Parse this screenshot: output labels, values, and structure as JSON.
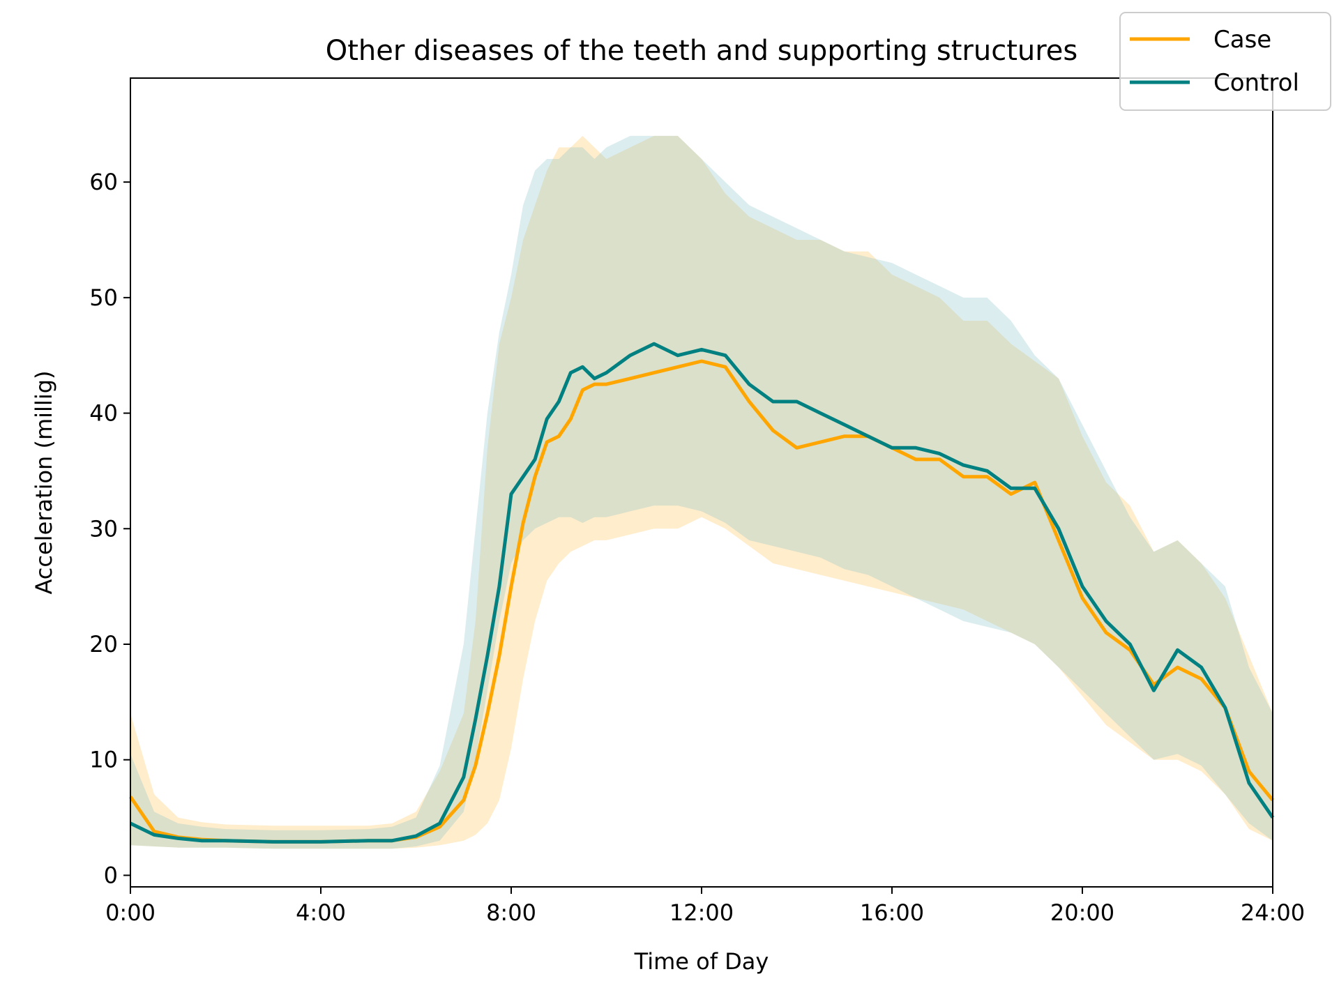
{
  "chart_data": {
    "type": "line",
    "title": "Other diseases of the teeth and supporting structures",
    "xlabel": "Time of Day",
    "ylabel": "Acceleration (millig)",
    "xlim": [
      0,
      24
    ],
    "ylim": [
      -1,
      69
    ],
    "x_ticks": [
      0,
      4,
      8,
      12,
      16,
      20,
      24
    ],
    "x_tick_labels": [
      "0:00",
      "4:00",
      "8:00",
      "12:00",
      "16:00",
      "20:00",
      "24:00"
    ],
    "y_ticks": [
      0,
      10,
      20,
      30,
      40,
      50,
      60
    ],
    "y_tick_labels": [
      "0",
      "10",
      "20",
      "30",
      "40",
      "50",
      "60"
    ],
    "grid": false,
    "legend_position": "top-right",
    "legend": [
      "Case",
      "Control"
    ],
    "series": [
      {
        "name": "Case",
        "color": "#FFA500",
        "band_color": "#FFA500",
        "x": [
          0,
          0.5,
          1,
          1.5,
          2,
          3,
          4,
          5,
          5.5,
          6,
          6.5,
          7,
          7.25,
          7.5,
          7.75,
          8,
          8.25,
          8.5,
          8.75,
          9,
          9.25,
          9.5,
          9.75,
          10,
          10.5,
          11,
          11.5,
          12,
          12.5,
          13,
          13.5,
          14,
          14.5,
          15,
          15.5,
          16,
          16.5,
          17,
          17.5,
          18,
          18.5,
          19,
          19.5,
          20,
          20.5,
          21,
          21.5,
          22,
          22.5,
          23,
          23.5,
          24
        ],
        "mean": [
          6.8,
          3.8,
          3.3,
          3.1,
          3.0,
          2.9,
          2.9,
          3.0,
          3.0,
          3.3,
          4.2,
          6.5,
          9.5,
          14.0,
          19.0,
          25.0,
          30.5,
          34.5,
          37.5,
          38.0,
          39.5,
          42.0,
          42.5,
          42.5,
          43.0,
          43.5,
          44.0,
          44.5,
          44.0,
          41.0,
          38.5,
          37.0,
          37.5,
          38.0,
          38.0,
          37.0,
          36.0,
          36.0,
          34.5,
          34.5,
          33.0,
          34.0,
          29.0,
          24.0,
          21.0,
          19.5,
          16.5,
          18.0,
          17.0,
          14.5,
          9.0,
          6.5
        ],
        "upper": [
          14.0,
          7.0,
          5.0,
          4.6,
          4.4,
          4.3,
          4.3,
          4.3,
          4.5,
          5.5,
          9.0,
          14.0,
          22.0,
          37.0,
          46.0,
          50.0,
          55.0,
          58.0,
          61.0,
          63.0,
          63.0,
          64.0,
          63.0,
          62.0,
          63.0,
          64.0,
          64.0,
          62.0,
          59.0,
          57.0,
          56.0,
          55.0,
          55.0,
          54.0,
          54.0,
          52.0,
          51.0,
          50.0,
          48.0,
          48.0,
          46.0,
          44.5,
          43.0,
          38.0,
          34.0,
          32.0,
          28.0,
          29.0,
          27.0,
          24.0,
          19.0,
          14.0
        ],
        "lower": [
          2.6,
          2.5,
          2.4,
          2.4,
          2.4,
          2.3,
          2.3,
          2.3,
          2.3,
          2.4,
          2.6,
          3.0,
          3.5,
          4.5,
          6.5,
          11.0,
          17.0,
          22.0,
          25.5,
          27.0,
          28.0,
          28.5,
          29.0,
          29.0,
          29.5,
          30.0,
          30.0,
          31.0,
          30.0,
          28.5,
          27.0,
          26.5,
          26.0,
          25.5,
          25.0,
          24.5,
          24.0,
          23.5,
          23.0,
          22.0,
          21.0,
          20.0,
          18.0,
          15.5,
          13.0,
          11.5,
          10.0,
          10.0,
          9.0,
          7.0,
          4.0,
          3.0
        ]
      },
      {
        "name": "Control",
        "color": "#008080",
        "band_color": "#7FBFC4",
        "x": [
          0,
          0.5,
          1,
          1.5,
          2,
          3,
          4,
          5,
          5.5,
          6,
          6.5,
          7,
          7.25,
          7.5,
          7.75,
          8,
          8.25,
          8.5,
          8.75,
          9,
          9.25,
          9.5,
          9.75,
          10,
          10.5,
          11,
          11.5,
          12,
          12.5,
          13,
          13.5,
          14,
          14.5,
          15,
          15.5,
          16,
          16.5,
          17,
          17.5,
          18,
          18.5,
          19,
          19.5,
          20,
          20.5,
          21,
          21.5,
          22,
          22.5,
          23,
          23.5,
          24
        ],
        "mean": [
          4.5,
          3.5,
          3.2,
          3.0,
          3.0,
          2.9,
          2.9,
          3.0,
          3.0,
          3.4,
          4.5,
          8.5,
          13.5,
          19.0,
          25.0,
          33.0,
          34.5,
          36.0,
          39.5,
          41.0,
          43.5,
          44.0,
          43.0,
          43.5,
          45.0,
          46.0,
          45.0,
          45.5,
          45.0,
          42.5,
          41.0,
          41.0,
          40.0,
          39.0,
          38.0,
          37.0,
          37.0,
          36.5,
          35.5,
          35.0,
          33.5,
          33.5,
          30.0,
          25.0,
          22.0,
          20.0,
          16.0,
          19.5,
          18.0,
          14.5,
          8.0,
          5.0
        ],
        "upper": [
          10.5,
          5.5,
          4.5,
          4.2,
          4.0,
          3.9,
          3.9,
          4.0,
          4.2,
          5.0,
          9.5,
          20.0,
          30.0,
          40.0,
          47.0,
          52.0,
          58.0,
          61.0,
          62.0,
          62.0,
          63.0,
          63.0,
          62.0,
          63.0,
          64.0,
          64.0,
          64.0,
          62.0,
          60.0,
          58.0,
          57.0,
          56.0,
          55.0,
          54.0,
          53.5,
          53.0,
          52.0,
          51.0,
          50.0,
          50.0,
          48.0,
          45.0,
          43.0,
          39.0,
          35.0,
          31.0,
          28.0,
          29.0,
          27.0,
          25.0,
          18.0,
          14.0
        ],
        "lower": [
          2.6,
          2.5,
          2.4,
          2.4,
          2.4,
          2.3,
          2.3,
          2.3,
          2.3,
          2.5,
          3.0,
          5.5,
          10.0,
          16.0,
          22.0,
          27.0,
          29.0,
          30.0,
          30.5,
          31.0,
          31.0,
          30.5,
          31.0,
          31.0,
          31.5,
          32.0,
          32.0,
          31.5,
          30.5,
          29.0,
          28.5,
          28.0,
          27.5,
          26.5,
          26.0,
          25.0,
          24.0,
          23.0,
          22.0,
          21.5,
          21.0,
          20.0,
          18.0,
          16.0,
          14.0,
          12.0,
          10.0,
          10.5,
          9.5,
          7.0,
          4.5,
          3.0
        ]
      }
    ]
  }
}
